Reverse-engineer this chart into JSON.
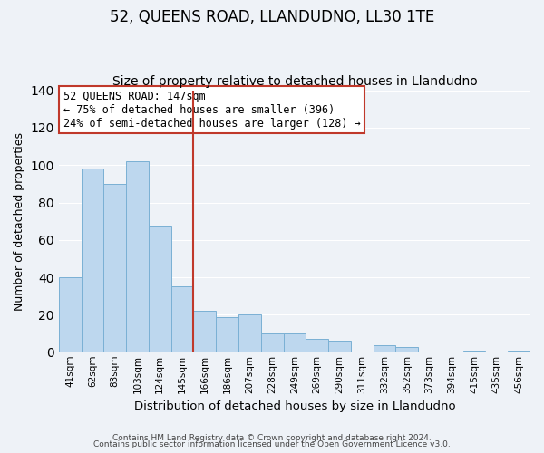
{
  "title": "52, QUEENS ROAD, LLANDUDNO, LL30 1TE",
  "subtitle": "Size of property relative to detached houses in Llandudno",
  "xlabel": "Distribution of detached houses by size in Llandudno",
  "ylabel": "Number of detached properties",
  "bar_labels": [
    "41sqm",
    "62sqm",
    "83sqm",
    "103sqm",
    "124sqm",
    "145sqm",
    "166sqm",
    "186sqm",
    "207sqm",
    "228sqm",
    "249sqm",
    "269sqm",
    "290sqm",
    "311sqm",
    "332sqm",
    "352sqm",
    "373sqm",
    "394sqm",
    "415sqm",
    "435sqm",
    "456sqm"
  ],
  "bar_values": [
    40,
    98,
    90,
    102,
    67,
    35,
    22,
    19,
    20,
    10,
    10,
    7,
    6,
    0,
    4,
    3,
    0,
    0,
    1,
    0,
    1
  ],
  "bar_color": "#bdd7ee",
  "bar_edge_color": "#7ab0d4",
  "vline_color": "#c0392b",
  "annotation_title": "52 QUEENS ROAD: 147sqm",
  "annotation_line1": "← 75% of detached houses are smaller (396)",
  "annotation_line2": "24% of semi-detached houses are larger (128) →",
  "annotation_box_edge_color": "#c0392b",
  "ylim": [
    0,
    140
  ],
  "yticks": [
    0,
    20,
    40,
    60,
    80,
    100,
    120,
    140
  ],
  "footer1": "Contains HM Land Registry data © Crown copyright and database right 2024.",
  "footer2": "Contains public sector information licensed under the Open Government Licence v3.0.",
  "background_color": "#eef2f7",
  "grid_color": "#ffffff",
  "title_fontsize": 12,
  "subtitle_fontsize": 10,
  "ylabel_fontsize": 9,
  "xlabel_fontsize": 9.5,
  "tick_fontsize": 7.5,
  "footer_fontsize": 6.5,
  "annotation_fontsize": 8.5
}
